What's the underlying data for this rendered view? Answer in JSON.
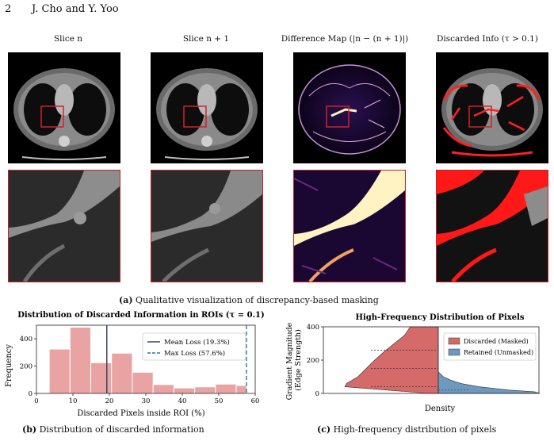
{
  "header": {
    "page_number": "2",
    "authors": "J. Cho and Y. Yoo"
  },
  "figure_a": {
    "panels": [
      {
        "title": "Slice n"
      },
      {
        "title": "Slice n + 1"
      },
      {
        "title": "Difference Map (|n − (n + 1)|)"
      },
      {
        "title": "Discarded Info (τ > 0.1)"
      }
    ],
    "caption_label": "(a)",
    "caption_text": "Qualitative visualization of discrepancy-based masking"
  },
  "figure_b": {
    "caption_label": "(b)",
    "caption_text": "Distribution of discarded information",
    "chart_data": {
      "type": "bar",
      "title": "Distribution of Discarded Information in ROIs (τ = 0.1)",
      "xlabel": "Discarded Pixels inside ROI (%)",
      "ylabel": "Frequency",
      "xlim": [
        0,
        60
      ],
      "ylim": [
        0,
        500
      ],
      "xticks": [
        0,
        10,
        20,
        30,
        40,
        50,
        60
      ],
      "yticks": [
        0,
        200,
        400
      ],
      "bin_edges": [
        3.5,
        9.2,
        14.9,
        20.6,
        26.3,
        32.0,
        37.7,
        43.4,
        49.1,
        54.8,
        57.6
      ],
      "values": [
        325,
        485,
        225,
        295,
        155,
        65,
        40,
        48,
        68,
        58
      ],
      "lines": [
        {
          "name": "Mean Loss (19.3%)",
          "x": 19.3,
          "style": "solid",
          "color": "#2f3b55"
        },
        {
          "name": "Max Loss (57.6%)",
          "x": 57.6,
          "style": "dashed",
          "color": "#1f77b4"
        }
      ],
      "bar_color": "#e9a3a3",
      "legend": "top-right"
    }
  },
  "figure_c": {
    "caption_label": "(c)",
    "caption_text": "High-frequency distribution of pixels",
    "chart_data": {
      "type": "area",
      "title": "High-Frequency Distribution of Pixels",
      "xlabel": "Density",
      "ylabel": "Gradient Magnitude (Edge Strength)",
      "ylim": [
        0,
        400
      ],
      "yticks": [
        0,
        200,
        400
      ],
      "series": [
        {
          "name": "Discarded (Masked)",
          "color": "#d46a6a",
          "y": [
            0,
            20,
            40,
            60,
            80,
            100,
            150,
            200,
            250,
            300,
            350,
            400
          ],
          "density": [
            0.1,
            0.55,
            1.0,
            0.98,
            0.92,
            0.86,
            0.77,
            0.68,
            0.58,
            0.47,
            0.36,
            0.3
          ]
        },
        {
          "name": "Retained (Unmasked)",
          "color": "#6e99bf",
          "y": [
            0,
            10,
            20,
            40,
            60,
            80,
            100,
            130
          ],
          "density": [
            1.0,
            0.95,
            0.7,
            0.4,
            0.22,
            0.12,
            0.05,
            0.0
          ]
        }
      ],
      "legend": "top-right"
    }
  }
}
